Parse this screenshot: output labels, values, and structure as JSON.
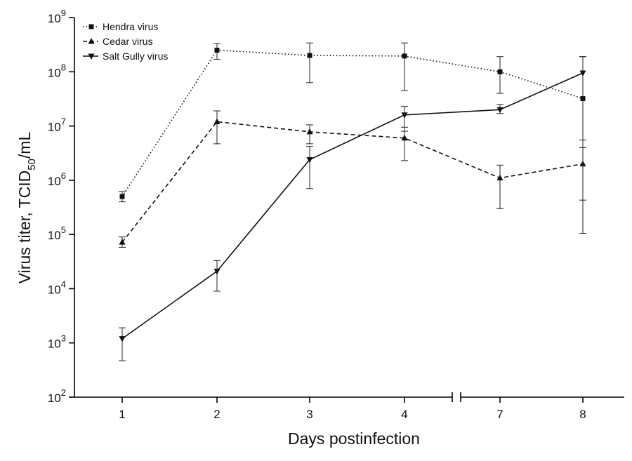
{
  "chart_data": {
    "type": "line",
    "xlabel": "Days postinfection",
    "ylabel_main": "Virus titer, TCID",
    "ylabel_sub": "50",
    "ylabel_end": "/mL",
    "y_scale": "log10",
    "ylim": [
      100,
      1000000000
    ],
    "y_ticks": [
      {
        "value": 100,
        "base": "10",
        "exp": "2"
      },
      {
        "value": 1000,
        "base": "10",
        "exp": "3"
      },
      {
        "value": 10000,
        "base": "10",
        "exp": "4"
      },
      {
        "value": 100000,
        "base": "10",
        "exp": "5"
      },
      {
        "value": 1000000,
        "base": "10",
        "exp": "6"
      },
      {
        "value": 10000000,
        "base": "10",
        "exp": "7"
      },
      {
        "value": 100000000,
        "base": "10",
        "exp": "8"
      },
      {
        "value": 1000000000,
        "base": "10",
        "exp": "9"
      }
    ],
    "x": [
      1,
      2,
      3,
      4,
      7,
      8
    ],
    "x_ticks": [
      "1",
      "2",
      "3",
      "4",
      "7",
      "8"
    ],
    "x_axis_break": "between 4 and 7",
    "legend_position": "top-left",
    "grid": false,
    "series": [
      {
        "name": "Hendra virus",
        "marker": "square",
        "line_style": "dotted",
        "values": [
          500000,
          250000000,
          200000000,
          195000000,
          100000000,
          32000000
        ],
        "error_low": [
          400000,
          170000000,
          63000000,
          45000000,
          40000000,
          5500000
        ],
        "error_high": [
          620000,
          330000000,
          340000000,
          340000000,
          190000000,
          190000000
        ]
      },
      {
        "name": "Cedar virus",
        "marker": "triangle-up",
        "line_style": "dashed",
        "values": [
          72000,
          12000000,
          7800000,
          6000000,
          1100000,
          2000000
        ],
        "error_low": [
          58000,
          4700000,
          4700000,
          2300000,
          300000,
          105000
        ],
        "error_high": [
          90000,
          19000000,
          10500000,
          9500000,
          1900000,
          4000000
        ]
      },
      {
        "name": "Salt Gully virus",
        "marker": "triangle-down",
        "line_style": "solid",
        "values": [
          1200,
          21000,
          2400000,
          16000000,
          20000000,
          95000000
        ],
        "error_low": [
          470,
          9000,
          700000,
          8000000,
          17000000,
          430000
        ],
        "error_high": [
          1900,
          33000,
          4200000,
          23000000,
          25000000,
          190000000
        ]
      }
    ]
  }
}
